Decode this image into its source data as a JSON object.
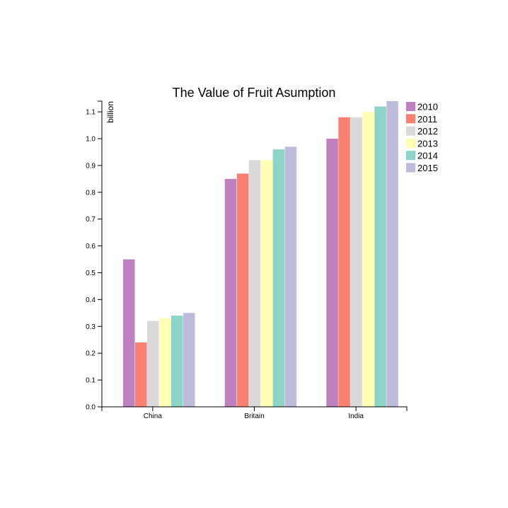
{
  "chart_data": {
    "type": "bar",
    "title": "The Value of Fruit Asumption",
    "ylabel": "billion",
    "xlabel": "",
    "categories": [
      "China",
      "Britain",
      "India"
    ],
    "ylim": [
      0,
      1.15
    ],
    "yticks": [
      "0.0",
      "0.1",
      "0.2",
      "0.3",
      "0.4",
      "0.5",
      "0.6",
      "0.7",
      "0.8",
      "0.9",
      "1.0",
      "1.1"
    ],
    "grid": false,
    "legend_position": "top-right",
    "series": [
      {
        "name": "2010",
        "color": "#bf80bf",
        "values": [
          0.55,
          0.85,
          1.0
        ]
      },
      {
        "name": "2011",
        "color": "#fb8072",
        "values": [
          0.24,
          0.87,
          1.08
        ]
      },
      {
        "name": "2012",
        "color": "#d9d9d9",
        "values": [
          0.32,
          0.92,
          1.08
        ]
      },
      {
        "name": "2013",
        "color": "#ffffb3",
        "values": [
          0.33,
          0.92,
          1.1
        ]
      },
      {
        "name": "2014",
        "color": "#8dd3c7",
        "values": [
          0.34,
          0.96,
          1.12
        ]
      },
      {
        "name": "2015",
        "color": "#bebada",
        "values": [
          0.35,
          0.97,
          1.14
        ]
      }
    ]
  }
}
